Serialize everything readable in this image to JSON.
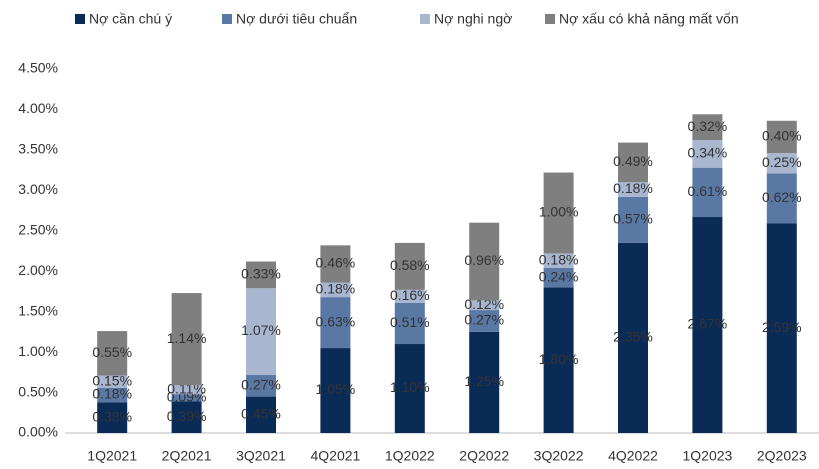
{
  "chart_data": {
    "type": "stacked-bar",
    "categories": [
      "1Q2021",
      "2Q2021",
      "3Q2021",
      "4Q2021",
      "1Q2022",
      "2Q2022",
      "3Q2022",
      "4Q2022",
      "1Q2023",
      "2Q2023"
    ],
    "series": [
      {
        "name": "Nợ cần chú ý",
        "color": "#0b2b57",
        "values": [
          0.38,
          0.39,
          0.45,
          1.05,
          1.1,
          1.25,
          1.8,
          2.35,
          2.67,
          2.59
        ],
        "value_labels": [
          "0.38%",
          "0.39%",
          "0.45%",
          "1.05%",
          "1.10%",
          "1.25%",
          "1.80%",
          "2.35%",
          "2.67%",
          "2.59%"
        ]
      },
      {
        "name": "Nợ dưới tiêu chuẩn",
        "color": "#5a78a4",
        "values": [
          0.18,
          0.09,
          0.27,
          0.63,
          0.51,
          0.27,
          0.24,
          0.57,
          0.61,
          0.62
        ],
        "value_labels": [
          "0.18%",
          "0.09%",
          "0.27%",
          "0.63%",
          "0.51%",
          "0.27%",
          "0.24%",
          "0.57%",
          "0.61%",
          "0.62%"
        ]
      },
      {
        "name": "Nợ nghi ngờ",
        "color": "#a8b6cf",
        "values": [
          0.15,
          0.11,
          1.07,
          0.18,
          0.16,
          0.12,
          0.18,
          0.18,
          0.34,
          0.25
        ],
        "value_labels": [
          "0.15%",
          "0.11%",
          "1.07%",
          "0.18%",
          "0.16%",
          "0.12%",
          "0.18%",
          "0.18%",
          "0.34%",
          "0.25%"
        ]
      },
      {
        "name": "Nợ xấu có khả năng mất vốn",
        "color": "#7f7f7f",
        "values": [
          0.55,
          1.14,
          0.33,
          0.46,
          0.58,
          0.96,
          1.0,
          0.49,
          0.32,
          0.4
        ],
        "value_labels": [
          "0.55%",
          "1.14%",
          "0.33%",
          "0.46%",
          "0.58%",
          "0.96%",
          "1.00%",
          "0.49%",
          "0.32%",
          "0.40%"
        ]
      }
    ],
    "ylim": [
      0,
      4.5
    ],
    "yticks": [
      {
        "value": 0,
        "label": "0.00%"
      },
      {
        "value": 0.5,
        "label": "0.50%"
      },
      {
        "value": 1,
        "label": "1.00%"
      },
      {
        "value": 1.5,
        "label": "1.50%"
      },
      {
        "value": 2,
        "label": "2.00%"
      },
      {
        "value": 2.5,
        "label": "2.50%"
      },
      {
        "value": 3,
        "label": "3.00%"
      },
      {
        "value": 3.5,
        "label": "3.50%"
      },
      {
        "value": 4,
        "label": "4.00%"
      },
      {
        "value": 4.5,
        "label": "4.50%"
      }
    ],
    "grid": false,
    "legend": "top"
  }
}
